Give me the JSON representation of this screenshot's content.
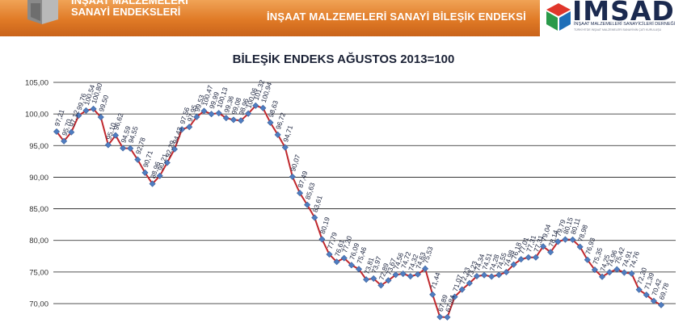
{
  "header": {
    "left_line1": "İNŞAAT MALZEMELERİ",
    "left_line2": "SANAYİ ENDEKSLERİ",
    "title": "İNŞAAT MALZEMELERİ SANAYİ BİLEŞİK ENDEKSİ",
    "logo_text": "İMSAD",
    "logo_subtitle": "İNŞAAT MALZEMELERİ SANAYİCİLERİ DERNEĞİ",
    "logo_tagline": "TÜRKİYE'DE İNŞAAT MALZEMELERİ SANAYİNİN ÇATI KURULUŞU"
  },
  "colors": {
    "header_orange": "#e07a26",
    "line": "#c0282d",
    "marker": "#4f7dc1",
    "grid": "#000000",
    "logo_navy": "#1b2a4f"
  },
  "icons": [
    "cube-icon",
    "imsad-logo-icon"
  ],
  "chart_data": {
    "type": "line",
    "title": "BİLEŞİK ENDEKS AĞUSTOS 2013=100",
    "xlabel": "",
    "ylabel": "",
    "ylim": [
      70,
      105
    ],
    "yticks": [
      "70,00",
      "75,00",
      "80,00",
      "85,00",
      "90,00",
      "95,00",
      "100,00",
      "105,00"
    ],
    "grid": "horizontal",
    "legend": "none",
    "series": [
      {
        "values": [
          97.21,
          95.7,
          97.12,
          99.76,
          100.54,
          100.8,
          99.5,
          95.1,
          96.62,
          94.59,
          94.55,
          92.78,
          90.71,
          88.96,
          90.21,
          92.29,
          94.43,
          97.56,
          97.95,
          99.53,
          100.47,
          99.99,
          100.13,
          99.36,
          99.08,
          98.96,
          100.06,
          101.32,
          100.94,
          98.63,
          96.72,
          94.71,
          90.07,
          87.49,
          85.63,
          83.61,
          80.19,
          77.79,
          76.61,
          77.2,
          76.09,
          75.46,
          73.81,
          73.97,
          72.89,
          73.67,
          74.56,
          74.72,
          74.32,
          74.63,
          75.53,
          71.44,
          67.89,
          67.84,
          71.07,
          72.23,
          73.23,
          74.34,
          74.51,
          74.28,
          74.55,
          74.98,
          76.18,
          77.01,
          77.31,
          77.31,
          79.04,
          78.14,
          79.79,
          80.15,
          80.11,
          78.98,
          76.93,
          75.35,
          74.25,
          74.96,
          75.42,
          74.91,
          74.76,
          72.2,
          71.39,
          70.42,
          69.78
        ],
        "labels": [
          "97,21",
          "95,70",
          "97,12",
          "99,76",
          "100,54",
          "100,80",
          "99,50",
          "95,10",
          "96,62",
          "94,59",
          "94,55",
          "92,78",
          "90,71",
          "88,96",
          "90,21",
          "92,29",
          "94,43",
          "97,56",
          "97,95",
          "99,53",
          "100,47",
          "99,99",
          "100,13",
          "99,36",
          "99,08",
          "98,96",
          "100,06",
          "101,32",
          "100,94",
          "98,63",
          "96,72",
          "94,71",
          "90,07",
          "87,49",
          "85,63",
          "83,61",
          "80,19",
          "77,79",
          "76,61",
          "77,20",
          "76,09",
          "75,46",
          "73,81",
          "73,97",
          "72,89",
          "73,67",
          "74,56",
          "74,72",
          "74,32",
          "74,63",
          "75,53",
          "71,44",
          "67,89",
          "67,84",
          "71,07",
          "72,23",
          "73,23",
          "74,34",
          "74,51",
          "74,28",
          "74,55",
          "74,98",
          "76,18",
          "77,01",
          "77,31",
          "77,31",
          "79,04",
          "78,14",
          "79,79",
          "80,15",
          "80,11",
          "78,98",
          "76,93",
          "75,35",
          "74,25",
          "74,96",
          "75,42",
          "74,91",
          "74,76",
          "72,20",
          "71,39",
          "70,42",
          "69,78"
        ]
      }
    ]
  }
}
